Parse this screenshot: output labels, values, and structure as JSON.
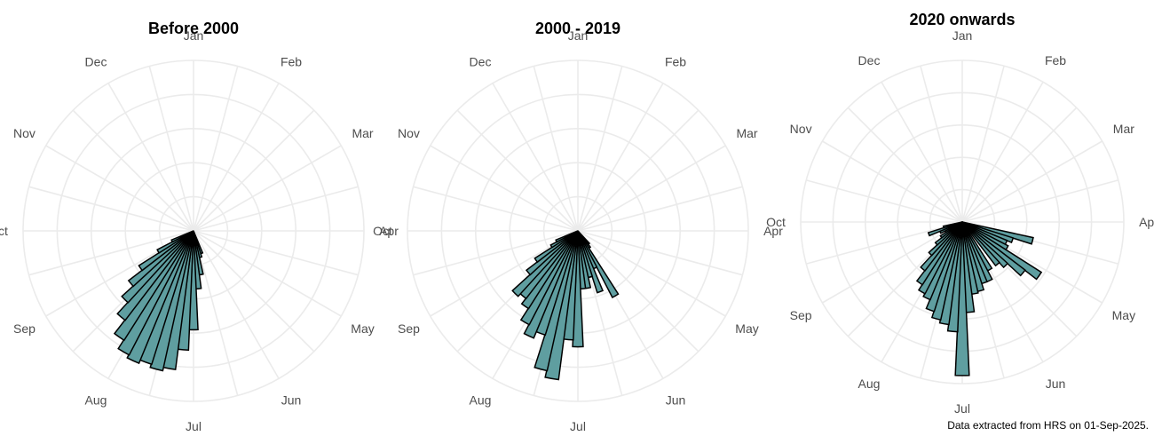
{
  "caption": "Data extracted from HRS on 01-Sep-2025.",
  "colors": {
    "bar_fill": "#5f9ea0",
    "bar_stroke": "#000000",
    "grid": "#ebebeb",
    "label": "#4d4d4d"
  },
  "chart_data": [
    {
      "type": "polar-bar",
      "title": "Before 2000",
      "month_labels": [
        "Jan",
        "Feb",
        "Mar",
        "Apr",
        "May",
        "Jun",
        "Jul",
        "Aug",
        "Sep",
        "Oct",
        "Nov",
        "Dec"
      ],
      "rmax": 1.0,
      "grid": true,
      "bars": [
        {
          "angle_deg": 160,
          "value": 0.14
        },
        {
          "angle_deg": 165,
          "value": 0.16
        },
        {
          "angle_deg": 170,
          "value": 0.26
        },
        {
          "angle_deg": 175,
          "value": 0.34
        },
        {
          "angle_deg": 180,
          "value": 0.58
        },
        {
          "angle_deg": 185,
          "value": 0.7
        },
        {
          "angle_deg": 190,
          "value": 0.82
        },
        {
          "angle_deg": 195,
          "value": 0.84
        },
        {
          "angle_deg": 200,
          "value": 0.82
        },
        {
          "angle_deg": 205,
          "value": 0.84
        },
        {
          "angle_deg": 210,
          "value": 0.82
        },
        {
          "angle_deg": 215,
          "value": 0.76
        },
        {
          "angle_deg": 220,
          "value": 0.66
        },
        {
          "angle_deg": 225,
          "value": 0.57
        },
        {
          "angle_deg": 230,
          "value": 0.48
        },
        {
          "angle_deg": 235,
          "value": 0.38
        },
        {
          "angle_deg": 240,
          "value": 0.24
        },
        {
          "angle_deg": 245,
          "value": 0.14
        }
      ]
    },
    {
      "type": "polar-bar",
      "title": "2000 - 2019",
      "month_labels": [
        "Jan",
        "Feb",
        "Mar",
        "Apr",
        "May",
        "Jun",
        "Jul",
        "Aug",
        "Sep",
        "Oct",
        "Nov",
        "Dec"
      ],
      "rmax": 1.0,
      "grid": true,
      "bars": [
        {
          "angle_deg": 140,
          "value": 0.1
        },
        {
          "angle_deg": 145,
          "value": 0.12
        },
        {
          "angle_deg": 150,
          "value": 0.44
        },
        {
          "angle_deg": 155,
          "value": 0.24
        },
        {
          "angle_deg": 160,
          "value": 0.38
        },
        {
          "angle_deg": 165,
          "value": 0.28
        },
        {
          "angle_deg": 170,
          "value": 0.34
        },
        {
          "angle_deg": 175,
          "value": 0.34
        },
        {
          "angle_deg": 180,
          "value": 0.68
        },
        {
          "angle_deg": 185,
          "value": 0.64
        },
        {
          "angle_deg": 190,
          "value": 0.88
        },
        {
          "angle_deg": 195,
          "value": 0.84
        },
        {
          "angle_deg": 200,
          "value": 0.64
        },
        {
          "angle_deg": 205,
          "value": 0.68
        },
        {
          "angle_deg": 210,
          "value": 0.62
        },
        {
          "angle_deg": 215,
          "value": 0.54
        },
        {
          "angle_deg": 220,
          "value": 0.5
        },
        {
          "angle_deg": 225,
          "value": 0.52
        },
        {
          "angle_deg": 230,
          "value": 0.38
        },
        {
          "angle_deg": 235,
          "value": 0.3
        },
        {
          "angle_deg": 240,
          "value": 0.18
        },
        {
          "angle_deg": 245,
          "value": 0.14
        }
      ]
    },
    {
      "type": "polar-bar",
      "title": "2020 onwards",
      "month_labels": [
        "Jan",
        "Feb",
        "Mar",
        "Apr",
        "May",
        "Jun",
        "Jul",
        "Aug",
        "Sep",
        "Oct",
        "Nov",
        "Dec"
      ],
      "rmax": 1.0,
      "grid": true,
      "bars": [
        {
          "angle_deg": 105,
          "value": 0.45
        },
        {
          "angle_deg": 110,
          "value": 0.33
        },
        {
          "angle_deg": 115,
          "value": 0.3
        },
        {
          "angle_deg": 120,
          "value": 0.32
        },
        {
          "angle_deg": 125,
          "value": 0.58
        },
        {
          "angle_deg": 130,
          "value": 0.49
        },
        {
          "angle_deg": 135,
          "value": 0.38
        },
        {
          "angle_deg": 140,
          "value": 0.34
        },
        {
          "angle_deg": 150,
          "value": 0.34
        },
        {
          "angle_deg": 155,
          "value": 0.4
        },
        {
          "angle_deg": 160,
          "value": 0.4
        },
        {
          "angle_deg": 165,
          "value": 0.44
        },
        {
          "angle_deg": 170,
          "value": 0.45
        },
        {
          "angle_deg": 175,
          "value": 0.56
        },
        {
          "angle_deg": 180,
          "value": 0.95
        },
        {
          "angle_deg": 185,
          "value": 0.68
        },
        {
          "angle_deg": 190,
          "value": 0.64
        },
        {
          "angle_deg": 195,
          "value": 0.62
        },
        {
          "angle_deg": 200,
          "value": 0.58
        },
        {
          "angle_deg": 205,
          "value": 0.52
        },
        {
          "angle_deg": 210,
          "value": 0.5
        },
        {
          "angle_deg": 215,
          "value": 0.46
        },
        {
          "angle_deg": 220,
          "value": 0.38
        },
        {
          "angle_deg": 225,
          "value": 0.28
        },
        {
          "angle_deg": 230,
          "value": 0.21
        },
        {
          "angle_deg": 235,
          "value": 0.16
        },
        {
          "angle_deg": 240,
          "value": 0.12
        },
        {
          "angle_deg": 245,
          "value": 0.15
        },
        {
          "angle_deg": 250,
          "value": 0.22
        },
        {
          "angle_deg": 255,
          "value": 0.12
        }
      ]
    }
  ]
}
